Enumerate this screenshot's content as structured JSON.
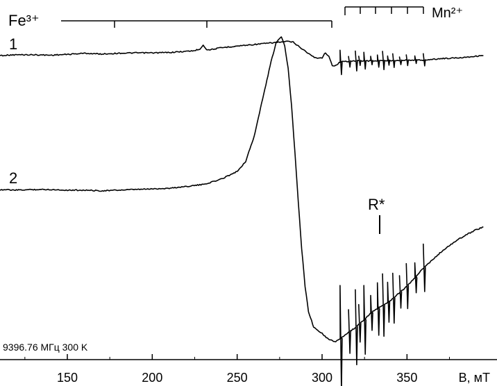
{
  "chart_data": {
    "type": "line",
    "xlabel": "B, мТ",
    "xlim": [
      98,
      395
    ],
    "x_ticks": [
      150,
      200,
      250,
      300,
      350
    ],
    "annotation_conditions": "9396.76 МГц 300 K",
    "series": [
      {
        "name": "1",
        "x": [
          100,
          110,
          120,
          130,
          140,
          150,
          160,
          170,
          180,
          190,
          200,
          210,
          220,
          225,
          228,
          230,
          232,
          235,
          240,
          250,
          260,
          270,
          275,
          278,
          280,
          283,
          286,
          290,
          293,
          296,
          300,
          302,
          304,
          306,
          308,
          310,
          312,
          320,
          330,
          340,
          350,
          360,
          370,
          380,
          390,
          395
        ],
        "y": [
          0.0,
          0.0,
          0.2,
          0.2,
          0.1,
          0.3,
          0.6,
          0.4,
          0.6,
          0.7,
          0.7,
          0.8,
          1.1,
          1.3,
          1.7,
          2.8,
          1.5,
          1.6,
          2.0,
          2.5,
          2.9,
          3.3,
          3.5,
          3.6,
          3.7,
          3.5,
          2.5,
          1.2,
          0.2,
          -0.6,
          -0.6,
          0.8,
          -0.3,
          -2.6,
          -2.6,
          -1.9,
          -1.6,
          -1.4,
          -1.4,
          -1.3,
          -1.2,
          -1.2,
          -0.8,
          -0.6,
          -0.2,
          0.0
        ]
      },
      {
        "name": "2",
        "x": [
          100,
          110,
          120,
          130,
          140,
          150,
          160,
          170,
          180,
          190,
          200,
          210,
          220,
          230,
          240,
          250,
          255,
          260,
          265,
          270,
          273,
          276,
          278,
          280,
          282,
          284,
          286,
          288,
          290,
          292,
          295,
          300,
          303,
          306,
          308,
          310,
          312,
          320,
          330,
          340,
          350,
          360,
          370,
          380,
          390,
          395
        ],
        "y": [
          0.0,
          0.0,
          -0.1,
          0.0,
          0.0,
          -0.1,
          -0.1,
          -0.2,
          -0.1,
          0.0,
          0.1,
          0.2,
          0.5,
          0.8,
          1.6,
          2.9,
          4.5,
          8.5,
          14.5,
          20.5,
          23.5,
          24.5,
          23.0,
          19.5,
          13.5,
          6.0,
          -2.0,
          -9.5,
          -15.5,
          -19.5,
          -22.0,
          -23.0,
          -23.8,
          -24.2,
          -24.3,
          -24.0,
          -23.6,
          -22.0,
          -19.5,
          -17.8,
          -15.5,
          -12.5,
          -10.0,
          -8.0,
          -6.5,
          -6.0
        ]
      }
    ],
    "markers": {
      "fe_label": "Fe³⁺",
      "mn_label": "Mn²⁺",
      "radical_label": "R*"
    }
  }
}
